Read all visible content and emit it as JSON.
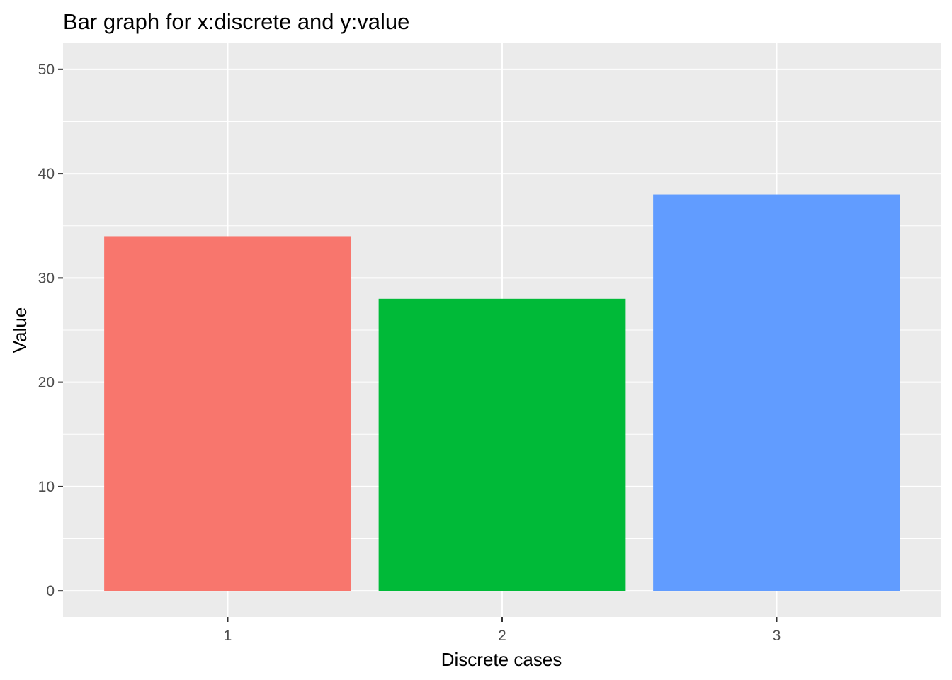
{
  "chart_data": {
    "type": "bar",
    "title": "Bar graph for x:discrete and y:value",
    "xlabel": "Discrete cases",
    "ylabel": "Value",
    "categories": [
      "1",
      "2",
      "3"
    ],
    "values": [
      34,
      28,
      38
    ],
    "bar_colors": [
      "#F8766D",
      "#00BA38",
      "#619CFF"
    ],
    "ylim": [
      -2.5,
      52.5
    ],
    "yticks": [
      0,
      10,
      20,
      30,
      40,
      50
    ],
    "ytick_labels": [
      "0",
      "10",
      "20",
      "30",
      "40",
      "50"
    ],
    "grid": true,
    "legend": "none",
    "panel_background": "#EBEBEB",
    "grid_color": "#FFFFFF",
    "tick_color": "#333333"
  }
}
